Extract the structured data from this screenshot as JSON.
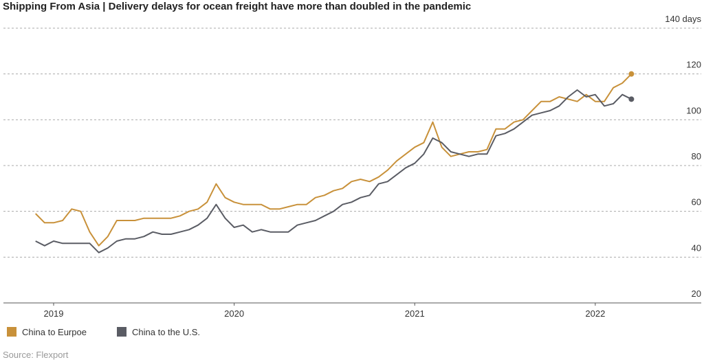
{
  "chart_data": {
    "type": "line",
    "title": "Shipping From Asia | Delivery delays for ocean freight have more than doubled in the pandemic",
    "source": "Source: Flexport",
    "x": [
      2018.9,
      2018.95,
      2019.0,
      2019.05,
      2019.1,
      2019.15,
      2019.2,
      2019.25,
      2019.3,
      2019.35,
      2019.4,
      2019.45,
      2019.5,
      2019.55,
      2019.6,
      2019.65,
      2019.7,
      2019.75,
      2019.8,
      2019.85,
      2019.9,
      2019.95,
      2020.0,
      2020.05,
      2020.1,
      2020.15,
      2020.2,
      2020.25,
      2020.3,
      2020.35,
      2020.4,
      2020.45,
      2020.5,
      2020.55,
      2020.6,
      2020.65,
      2020.7,
      2020.75,
      2020.8,
      2020.85,
      2020.9,
      2020.95,
      2021.0,
      2021.05,
      2021.1,
      2021.15,
      2021.2,
      2021.25,
      2021.3,
      2021.35,
      2021.4,
      2021.45,
      2021.5,
      2021.55,
      2021.6,
      2021.65,
      2021.7,
      2021.75,
      2021.8,
      2021.85,
      2021.9,
      2021.95,
      2022.0,
      2022.05,
      2022.1,
      2022.15,
      2022.2
    ],
    "series": [
      {
        "name": "China to Eurpoe",
        "color": "#c8913a",
        "values": [
          59,
          55,
          55,
          56,
          61,
          60,
          51,
          45,
          49,
          56,
          56,
          56,
          57,
          57,
          57,
          57,
          58,
          60,
          61,
          64,
          72,
          66,
          64,
          63,
          63,
          63,
          61,
          61,
          62,
          63,
          63,
          66,
          67,
          69,
          70,
          73,
          74,
          73,
          75,
          78,
          82,
          85,
          88,
          90,
          99,
          88,
          84,
          85,
          86,
          86,
          87,
          96,
          96,
          99,
          100,
          104,
          108,
          108,
          110,
          109,
          108,
          111,
          108,
          108,
          114,
          116,
          120
        ]
      },
      {
        "name": "China to the U.S.",
        "color": "#5a5c64",
        "values": [
          47,
          45,
          47,
          46,
          46,
          46,
          46,
          42,
          44,
          47,
          48,
          48,
          49,
          51,
          50,
          50,
          51,
          52,
          54,
          57,
          63,
          57,
          53,
          54,
          51,
          52,
          51,
          51,
          51,
          54,
          55,
          56,
          58,
          60,
          63,
          64,
          66,
          67,
          72,
          73,
          76,
          79,
          81,
          85,
          92,
          90,
          86,
          85,
          84,
          85,
          85,
          93,
          94,
          96,
          99,
          102,
          103,
          104,
          106,
          110,
          113,
          110,
          111,
          106,
          107,
          111,
          109
        ]
      }
    ],
    "xlim": [
      2018.722,
      2022.587
    ],
    "xticks": [
      2019,
      2020,
      2021,
      2022
    ],
    "ylim": [
      20,
      140
    ],
    "yticks": [
      20,
      40,
      60,
      80,
      100,
      120,
      {
        "value": 140,
        "label": "140 days"
      }
    ],
    "grid": true
  }
}
